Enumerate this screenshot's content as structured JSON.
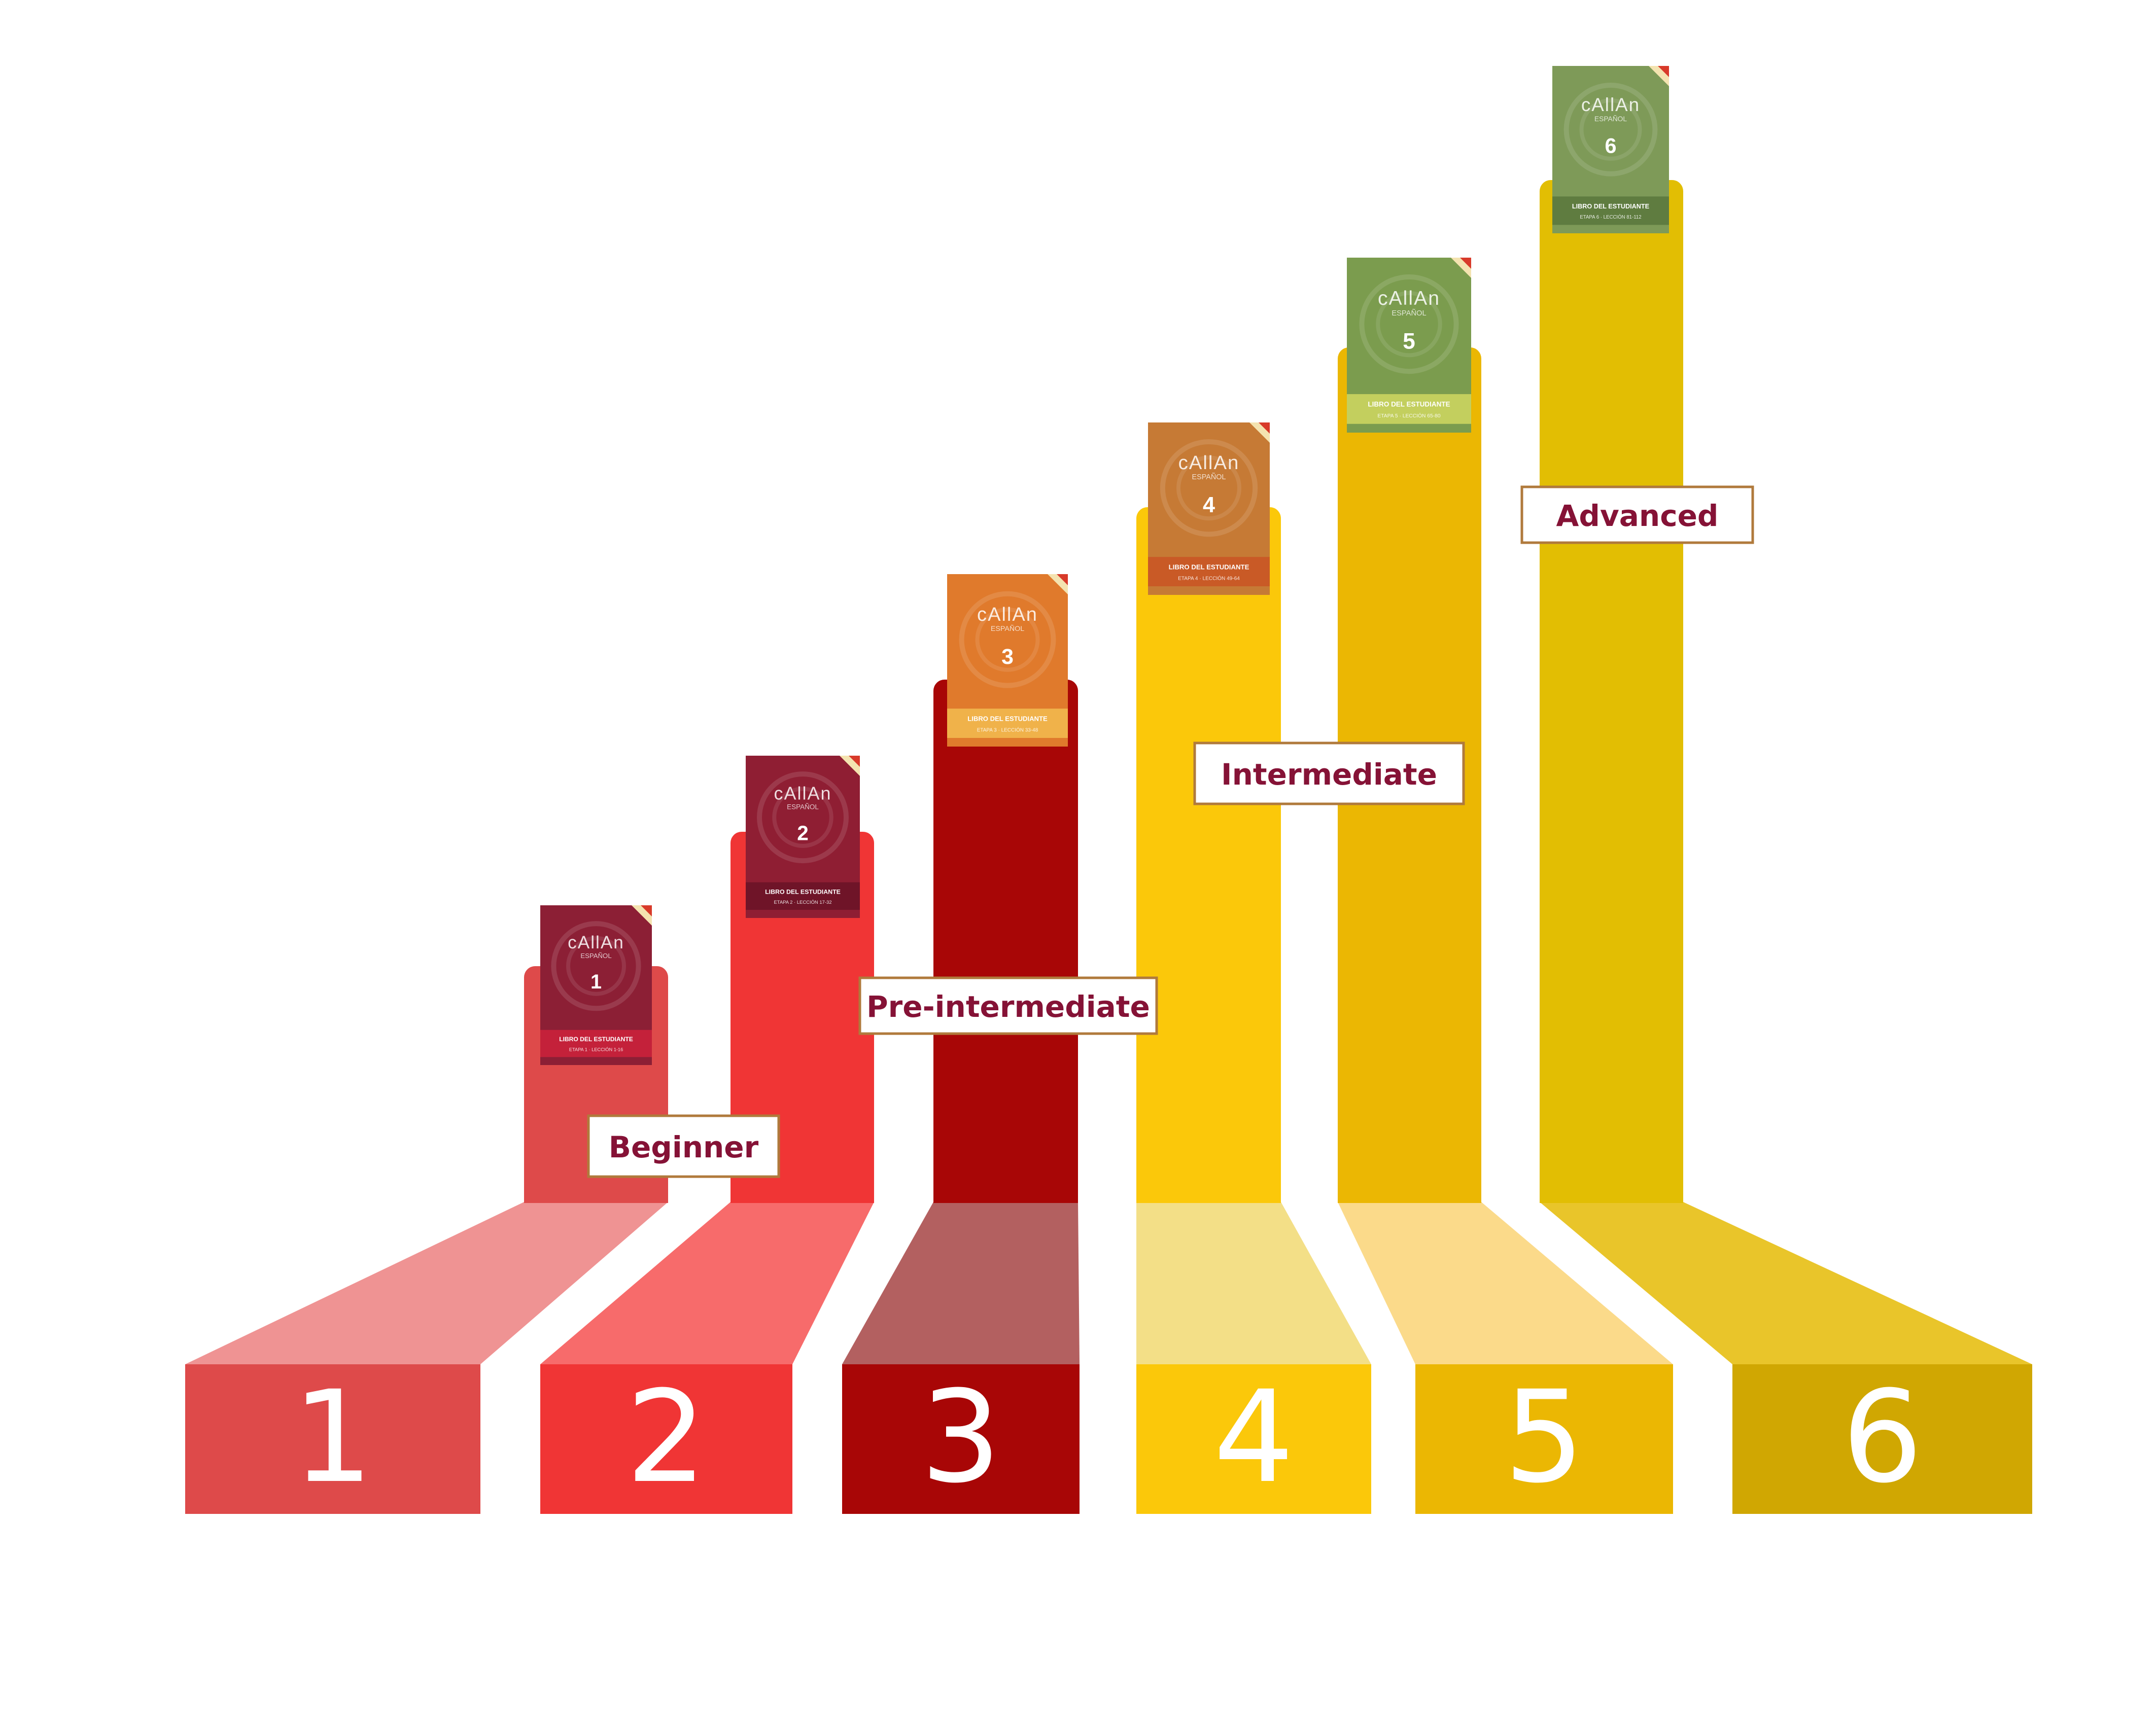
{
  "diagram": {
    "steps": [
      {
        "number": "1",
        "column_color": "#de4a4a",
        "floor_color": "#ef9393",
        "base_color": "#de4a4a",
        "book": {
          "brand": "cAllAn",
          "subtitle": "ESPAÑOL",
          "number": "1",
          "footer_title": "LIBRO DEL ESTUDIANTE",
          "footer_sub": "ETAPA 1 · LECCIÓN 1-16",
          "cover_color": "#8c1f35",
          "band_color": "#c4213a"
        }
      },
      {
        "number": "2",
        "column_color": "#f03535",
        "floor_color": "#f76b6b",
        "base_color": "#f03535",
        "book": {
          "brand": "cAllAn",
          "subtitle": "ESPAÑOL",
          "number": "2",
          "footer_title": "LIBRO DEL ESTUDIANTE",
          "footer_sub": "ETAPA 2 · LECCIÓN 17-32",
          "cover_color": "#8f1e33",
          "band_color": "#6f1428"
        }
      },
      {
        "number": "3",
        "column_color": "#a80606",
        "floor_color": "#b36060",
        "base_color": "#a80606",
        "book": {
          "brand": "cAllAn",
          "subtitle": "ESPAÑOL",
          "number": "3",
          "footer_title": "LIBRO DEL ESTUDIANTE",
          "footer_sub": "ETAPA 3 · LECCIÓN 33-48",
          "cover_color": "#e07a2c",
          "band_color": "#f0b24a"
        }
      },
      {
        "number": "4",
        "column_color": "#fbc80a",
        "floor_color": "#f3df87",
        "base_color": "#fbc80a",
        "book": {
          "brand": "cAllAn",
          "subtitle": "ESPAÑOL",
          "number": "4",
          "footer_title": "LIBRO DEL ESTUDIANTE",
          "footer_sub": "ETAPA 4 · LECCIÓN 49-64",
          "cover_color": "#c67a35",
          "band_color": "#c95a26"
        }
      },
      {
        "number": "5",
        "column_color": "#ebb703",
        "floor_color": "#fbda8a",
        "base_color": "#ebb703",
        "book": {
          "brand": "cAllAn",
          "subtitle": "ESPAÑOL",
          "number": "5",
          "footer_title": "LIBRO DEL ESTUDIANTE",
          "footer_sub": "ETAPA 5 · LECCIÓN 65-80",
          "cover_color": "#7b9c4e",
          "band_color": "#c3cf5e"
        }
      },
      {
        "number": "6",
        "column_color": "#e2be03",
        "floor_color": "#e9c52a",
        "base_color": "#d0a702",
        "book": {
          "brand": "cAllAn",
          "subtitle": "ESPAÑOL",
          "number": "6",
          "footer_title": "LIBRO DEL ESTUDIANTE",
          "footer_sub": "ETAPA 6 · LECCIÓN 81-112",
          "cover_color": "#7e9a58",
          "band_color": "#5f7c40"
        }
      }
    ],
    "levels": [
      {
        "name": "Beginner"
      },
      {
        "name": "Pre-intermediate"
      },
      {
        "name": "Intermediate"
      },
      {
        "name": "Advanced"
      }
    ],
    "colors": {
      "label_text": "#851236",
      "label_border": "#b07a3c",
      "base_number": "#ffffff"
    }
  }
}
